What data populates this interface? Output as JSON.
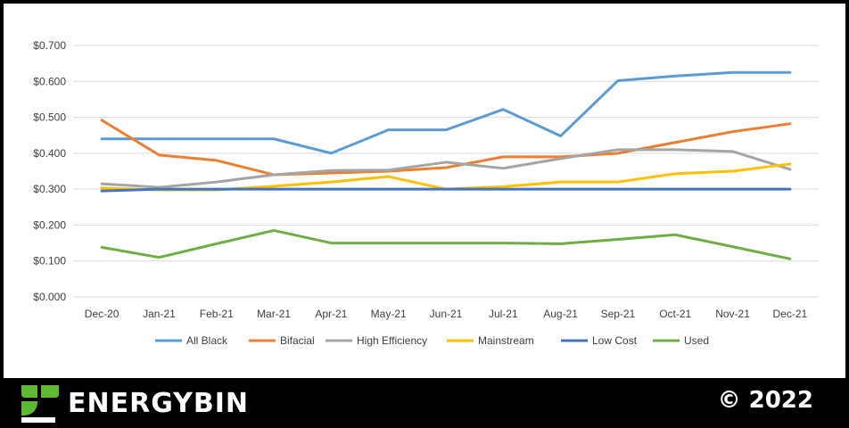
{
  "chart_data": {
    "type": "line",
    "categories": [
      "Dec-20",
      "Jan-21",
      "Feb-21",
      "Mar-21",
      "Apr-21",
      "May-21",
      "Jun-21",
      "Jul-21",
      "Aug-21",
      "Sep-21",
      "Oct-21",
      "Nov-21",
      "Dec-21"
    ],
    "yticks": [
      "$0.000",
      "$0.100",
      "$0.200",
      "$0.300",
      "$0.400",
      "$0.500",
      "$0.600",
      "$0.700"
    ],
    "ylim": [
      0,
      0.7
    ],
    "grid": true,
    "legend_position": "bottom",
    "series": [
      {
        "name": "All Black",
        "color": "#5B9BD5",
        "values": [
          0.44,
          0.44,
          0.44,
          0.44,
          0.4,
          0.465,
          0.465,
          0.522,
          0.448,
          0.602,
          0.615,
          0.625,
          0.625
        ]
      },
      {
        "name": "Bifacial",
        "color": "#ED7D31",
        "values": [
          0.492,
          0.395,
          0.38,
          0.34,
          0.345,
          0.35,
          0.36,
          0.39,
          0.39,
          0.4,
          0.43,
          0.46,
          0.482
        ]
      },
      {
        "name": "High Efficiency",
        "color": "#A5A5A5",
        "values": [
          0.315,
          0.305,
          0.32,
          0.34,
          0.352,
          0.353,
          0.375,
          0.358,
          0.385,
          0.41,
          0.41,
          0.405,
          0.355
        ]
      },
      {
        "name": "Mainstream",
        "color": "#FFC000",
        "values": [
          0.303,
          0.298,
          0.298,
          0.308,
          0.32,
          0.335,
          0.3,
          0.307,
          0.32,
          0.32,
          0.343,
          0.35,
          0.37
        ]
      },
      {
        "name": "Low Cost",
        "color": "#4472C4",
        "values": [
          0.295,
          0.3,
          0.3,
          0.3,
          0.3,
          0.3,
          0.3,
          0.3,
          0.3,
          0.3,
          0.3,
          0.3,
          0.3
        ]
      },
      {
        "name": "Used",
        "color": "#70AD47",
        "values": [
          0.138,
          0.11,
          0.148,
          0.185,
          0.15,
          0.15,
          0.15,
          0.15,
          0.148,
          0.16,
          0.173,
          0.14,
          0.106
        ]
      }
    ]
  },
  "footer": {
    "brand": "ENERGYBIN",
    "copyright": "© 2022",
    "brand_colors": {
      "text": "#ffffff",
      "leaf": "#5FB832"
    }
  }
}
